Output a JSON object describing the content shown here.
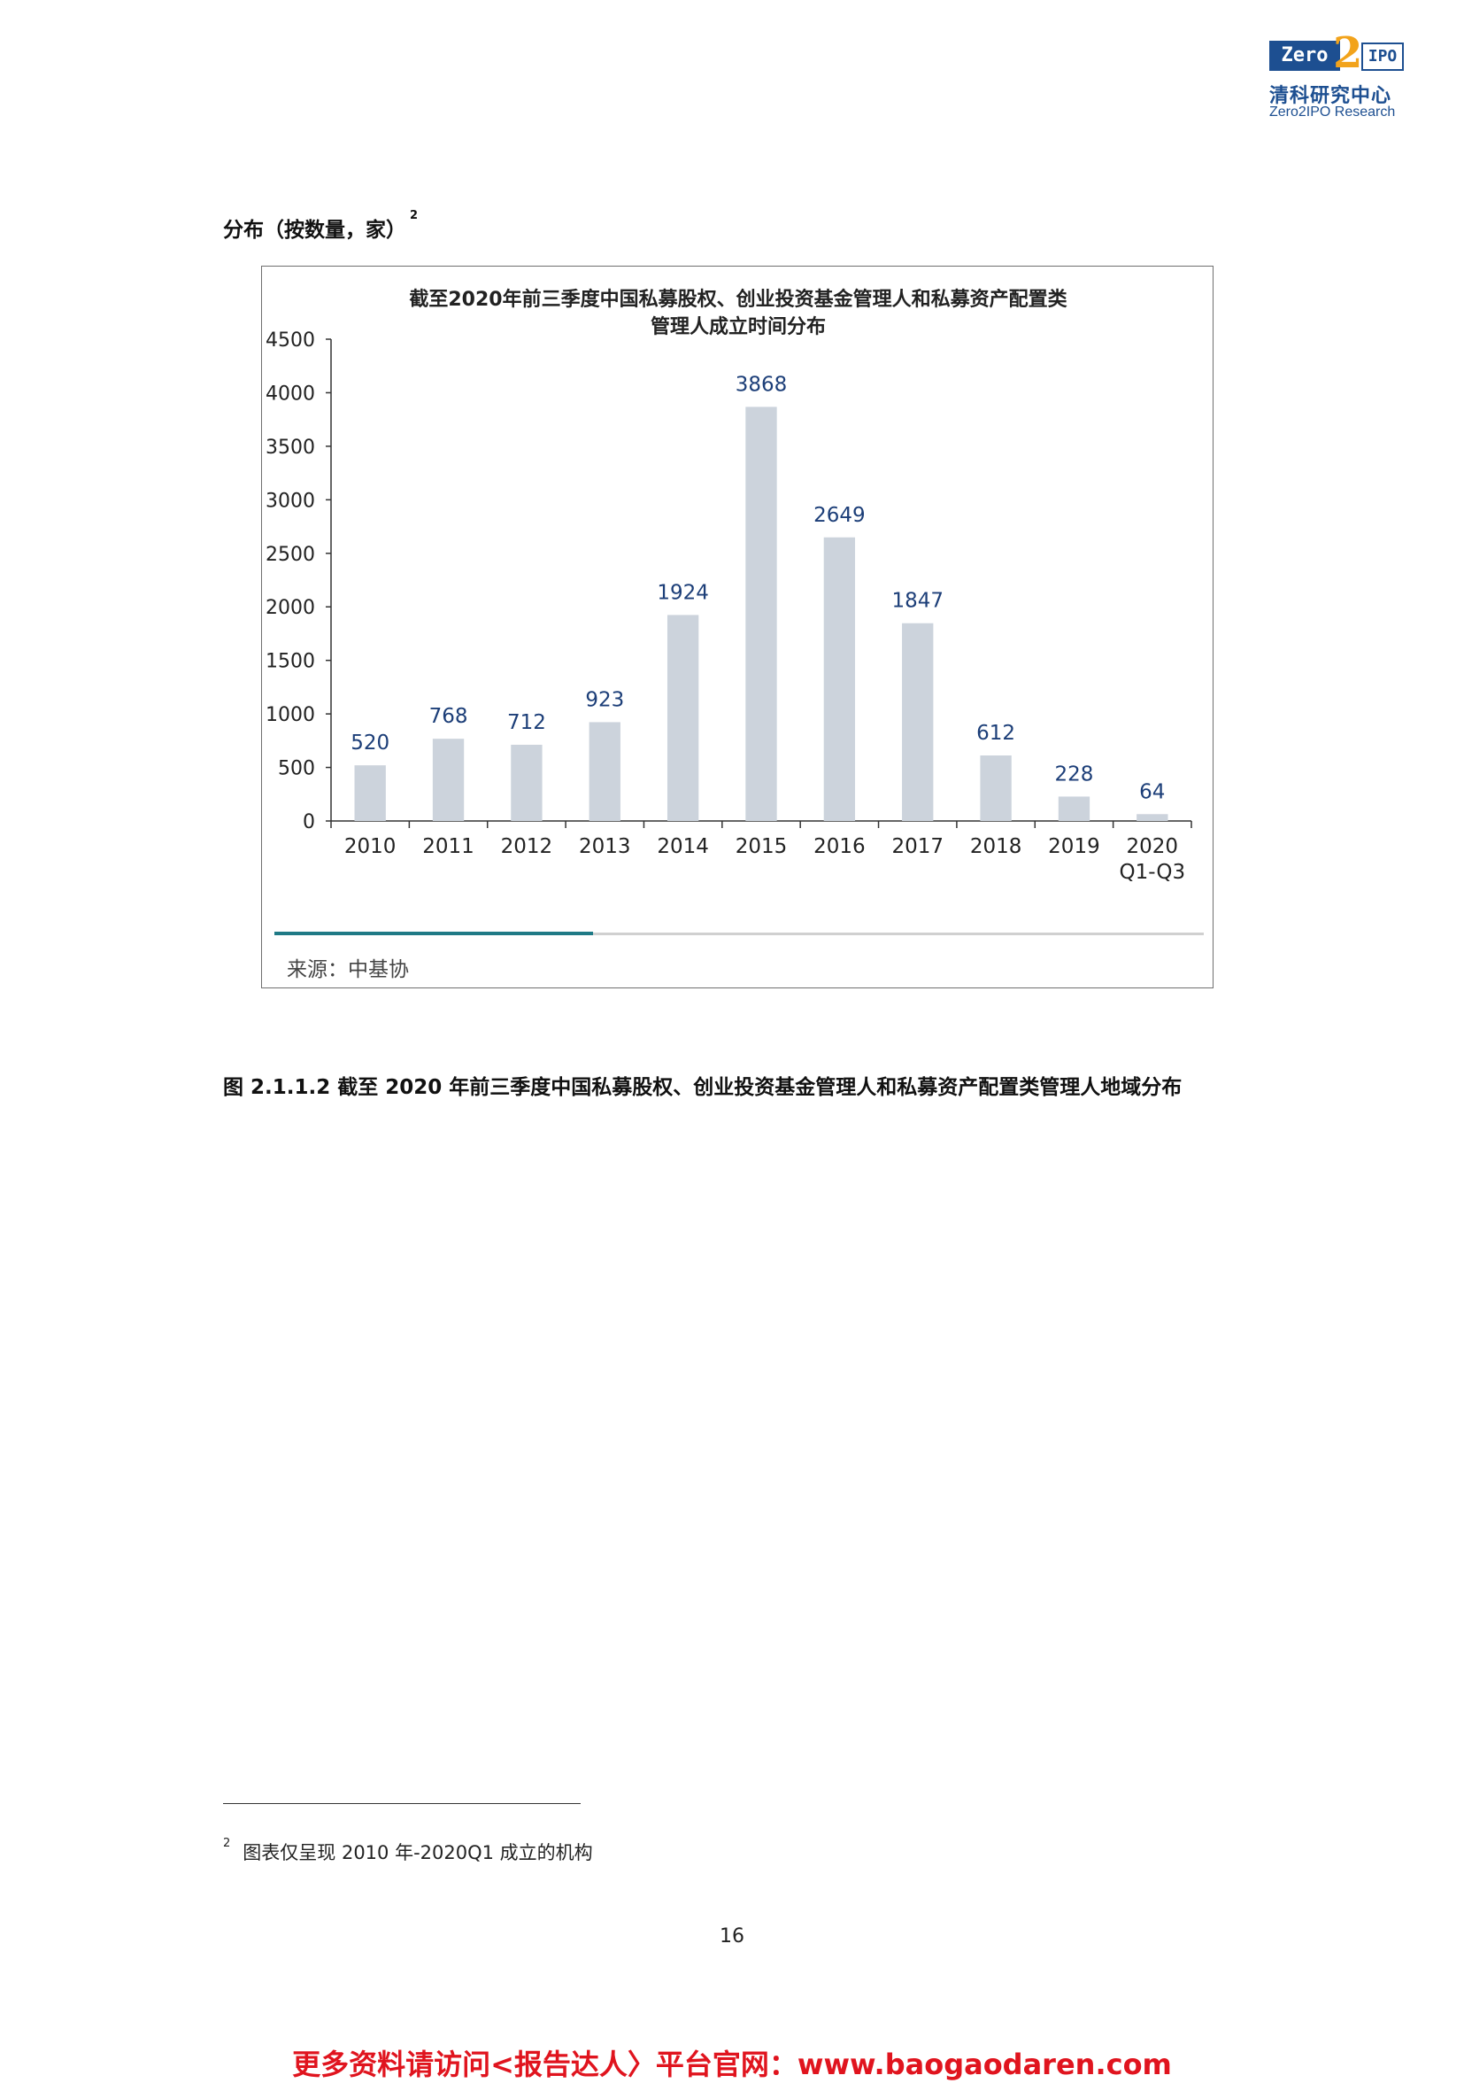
{
  "logo": {
    "zero": "Zero",
    "two": "2",
    "ipo": "IPO",
    "cn": "清科研究中心",
    "en": "Zero2IPO Research"
  },
  "section_heading": {
    "text": "分布（按数量，家）",
    "footnote_ref": "2"
  },
  "chart_data": {
    "type": "bar",
    "title_lines": [
      "截至2020年前三季度中国私募股权、创业投资基金管理人和私募资产配置类",
      "管理人成立时间分布"
    ],
    "categories": [
      [
        "2010"
      ],
      [
        "2011"
      ],
      [
        "2012"
      ],
      [
        "2013"
      ],
      [
        "2014"
      ],
      [
        "2015"
      ],
      [
        "2016"
      ],
      [
        "2017"
      ],
      [
        "2018"
      ],
      [
        "2019"
      ],
      [
        "2020",
        "Q1-Q3"
      ]
    ],
    "values": [
      520,
      768,
      712,
      923,
      1924,
      3868,
      2649,
      1847,
      612,
      228,
      64
    ],
    "ylim": [
      0,
      4500
    ],
    "yticks": [
      0,
      500,
      1000,
      1500,
      2000,
      2500,
      3000,
      3500,
      4000,
      4500
    ],
    "xlabel": "",
    "ylabel": "",
    "grid": false,
    "colors": {
      "bar": "#ccd3dc",
      "label": "#1c3e78",
      "axis": "#333333"
    },
    "source": "来源：中基协"
  },
  "figure_caption": "图 2.1.1.2  截至 2020 年前三季度中国私募股权、创业投资基金管理人和私募资产配置类管理人地域分布",
  "footnote": {
    "ref": "2",
    "text": "图表仅呈现 2010 年-2020Q1 成立的机构"
  },
  "page_number": "16",
  "promo": "更多资料请访问<报告达人〉平台官网：www.baogaodaren.com"
}
